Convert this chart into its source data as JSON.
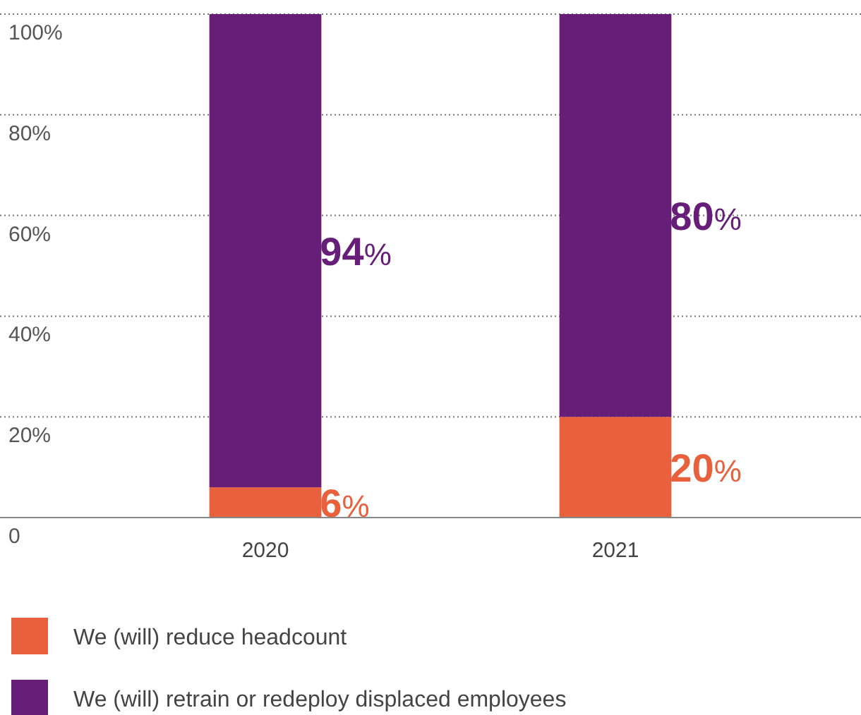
{
  "chart_data": {
    "type": "bar",
    "stacked": true,
    "categories": [
      "2020",
      "2021"
    ],
    "series": [
      {
        "name": "We (will) reduce headcount",
        "color": "#e8603c",
        "values": [
          6,
          20
        ],
        "value_labels": [
          "6%",
          "20%"
        ]
      },
      {
        "name": "We (will) retrain or redeploy displaced employees",
        "color": "#671e78",
        "values": [
          94,
          80
        ],
        "value_labels": [
          "94%",
          "80%"
        ]
      }
    ],
    "ylim": [
      0,
      100
    ],
    "yticks": [
      {
        "value": 0,
        "label": "0"
      },
      {
        "value": 20,
        "label": "20%"
      },
      {
        "value": 40,
        "label": "40%"
      },
      {
        "value": 60,
        "label": "60%"
      },
      {
        "value": 80,
        "label": "80%"
      },
      {
        "value": 100,
        "label": "100%"
      }
    ],
    "grid": "y",
    "legend": "bottom"
  }
}
